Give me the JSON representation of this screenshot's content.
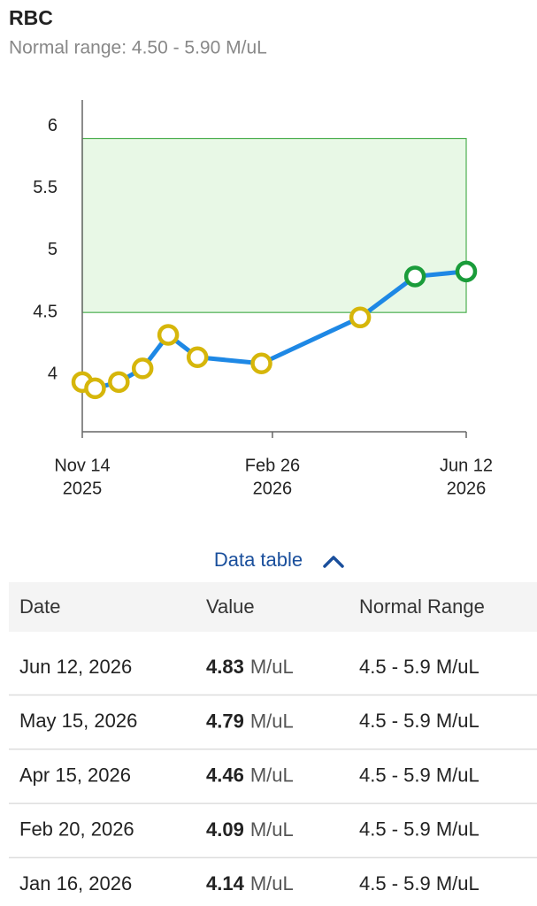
{
  "header": {
    "title": "RBC",
    "subtitle": "Normal range: 4.50 - 5.90 M/uL"
  },
  "chart_data": {
    "type": "line",
    "x": [
      "2025-11-14",
      "2025-11-21",
      "2025-12-04",
      "2025-12-17",
      "2025-12-31",
      "2026-01-16",
      "2026-02-20",
      "2026-04-15",
      "2026-05-15",
      "2026-06-12"
    ],
    "values": [
      3.94,
      3.89,
      3.94,
      4.05,
      4.32,
      4.14,
      4.09,
      4.46,
      4.79,
      4.83
    ],
    "line_color": "#1e88e5",
    "marker_colors": {
      "in_range": "#1a9c3a",
      "out_of_range": "#d6b60a"
    },
    "normal_range": [
      4.5,
      5.9
    ],
    "normal_range_color": "#e8f8e6",
    "normal_range_border": "#4caf50",
    "xlim": [
      "2025-11-14",
      "2026-06-12"
    ],
    "xticks": [
      {
        "value": "2025-11-14",
        "label": [
          "Nov 14",
          "2025"
        ]
      },
      {
        "value": "2026-02-26",
        "label": [
          "Feb 26",
          "2026"
        ]
      },
      {
        "value": "2026-06-12",
        "label": [
          "Jun 12",
          "2026"
        ]
      }
    ],
    "ylim": [
      3.54,
      6.21
    ],
    "yticks": [
      4,
      4.5,
      5,
      5.5,
      6
    ],
    "grid": false
  },
  "data_table": {
    "toggle": "Data table",
    "columns": [
      "Date",
      "Value",
      "Normal Range"
    ],
    "rows": [
      [
        "Jun 12, 2026",
        4.83,
        "M/uL",
        "4.5 - 5.9 M/uL"
      ],
      [
        "May 15, 2026",
        4.79,
        "M/uL",
        "4.5 - 5.9 M/uL"
      ],
      [
        "Apr 15, 2026",
        4.46,
        "M/uL",
        "4.5 - 5.9 M/uL"
      ],
      [
        "Feb 20, 2026",
        4.09,
        "M/uL",
        "4.5 - 5.9 M/uL"
      ],
      [
        "Jan 16, 2026",
        4.14,
        "M/uL",
        "4.5 - 5.9 M/uL"
      ]
    ]
  }
}
